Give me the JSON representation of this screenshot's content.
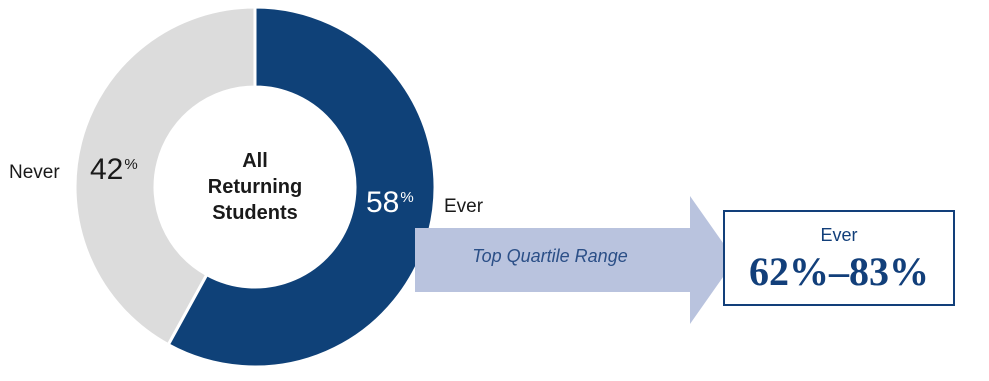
{
  "chart_data": {
    "type": "pie",
    "center_label": [
      "All",
      "Returning",
      "Students"
    ],
    "slices": [
      {
        "label": "Ever",
        "value": 58,
        "display": "58",
        "unit": "%",
        "color": "#0f4178"
      },
      {
        "label": "Never",
        "value": 42,
        "display": "42",
        "unit": "%",
        "color": "#dcdcdc"
      }
    ]
  },
  "callout": {
    "arrow_label": "Top Quartile Range",
    "box_heading": "Ever",
    "box_value": "62%–83%"
  },
  "colors": {
    "ever": "#0f4178",
    "never": "#dcdcdc",
    "arrow": "#b9c3de",
    "box_border": "#123f7a"
  }
}
